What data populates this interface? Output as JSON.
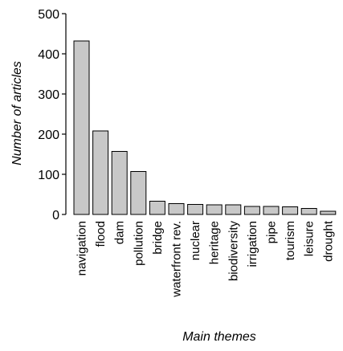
{
  "chart_data": {
    "type": "bar",
    "xlabel": "Main themes",
    "ylabel": "Number of articles",
    "ylim": [
      0,
      500
    ],
    "yticks": [
      "0",
      "100",
      "200",
      "300",
      "400",
      "500"
    ],
    "grid": false,
    "legend": "none",
    "bar_color": "#c8c8c8",
    "bar_edge_color": "#000000",
    "categories": [
      "navigation",
      "flood",
      "dam",
      "pollution",
      "bridge",
      "waterfront rev.",
      "nuclear",
      "heritage",
      "biodiversity",
      "irrigation",
      "pipe",
      "tourism",
      "leisure",
      "drought"
    ],
    "values": [
      432,
      208,
      157,
      107,
      33,
      27,
      25,
      24,
      24,
      20,
      20,
      19,
      15,
      8
    ]
  }
}
